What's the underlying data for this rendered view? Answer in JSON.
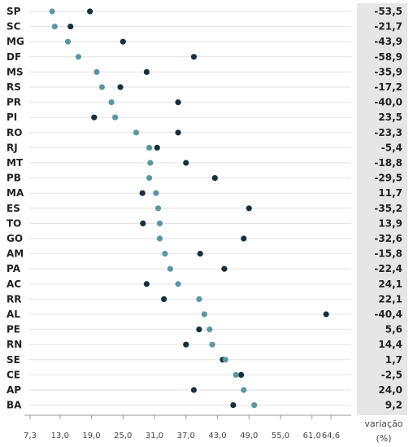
{
  "chart_data": {
    "type": "scatter",
    "title": "",
    "x_axis": {
      "range": [
        7.3,
        64.6
      ],
      "ticks": [
        7.3,
        13.0,
        19.0,
        25.0,
        31.0,
        37.0,
        43.0,
        49.0,
        55.0,
        61.0,
        64.6
      ],
      "tick_labels": [
        "7,3",
        "13,0",
        "19,0",
        "25,0",
        "31,0",
        "37,0",
        "43,0",
        "49,0",
        "55,0",
        "61,0",
        "64,6"
      ]
    },
    "variation_column": {
      "label_line1": "variação",
      "label_line2": "(%)"
    },
    "series_colors": {
      "light": "#5b97a1",
      "dark": "#17303d"
    },
    "states": [
      {
        "name": "SP",
        "light": 11.5,
        "dark": 18.7,
        "variation": "-53,5"
      },
      {
        "name": "SC",
        "light": 12.0,
        "dark": 15.0,
        "variation": "-21,7"
      },
      {
        "name": "MG",
        "light": 14.5,
        "dark": 25.0,
        "variation": "-43,9"
      },
      {
        "name": "DF",
        "light": 16.5,
        "dark": 38.5,
        "variation": "-58,9"
      },
      {
        "name": "MS",
        "light": 20.0,
        "dark": 29.5,
        "variation": "-35,9"
      },
      {
        "name": "RS",
        "light": 21.0,
        "dark": 24.5,
        "variation": "-17,2"
      },
      {
        "name": "PR",
        "light": 22.8,
        "dark": 35.5,
        "variation": "-40,0"
      },
      {
        "name": "PI",
        "light": 23.5,
        "dark": 19.5,
        "variation": "23,5"
      },
      {
        "name": "RO",
        "light": 27.5,
        "dark": 35.5,
        "variation": "-23,3"
      },
      {
        "name": "RJ",
        "light": 30.0,
        "dark": 31.5,
        "variation": "-5,4"
      },
      {
        "name": "MT",
        "light": 30.2,
        "dark": 37.0,
        "variation": "-18,8"
      },
      {
        "name": "PB",
        "light": 30.0,
        "dark": 42.5,
        "variation": "-29,5"
      },
      {
        "name": "MA",
        "light": 31.3,
        "dark": 28.7,
        "variation": "11,7"
      },
      {
        "name": "ES",
        "light": 31.7,
        "dark": 49.0,
        "variation": "-35,2"
      },
      {
        "name": "TO",
        "light": 32.0,
        "dark": 28.8,
        "variation": "13,9"
      },
      {
        "name": "GO",
        "light": 32.0,
        "dark": 48.0,
        "variation": "-32,6"
      },
      {
        "name": "AM",
        "light": 33.0,
        "dark": 39.7,
        "variation": "-15,8"
      },
      {
        "name": "PA",
        "light": 34.0,
        "dark": 44.3,
        "variation": "-22,4"
      },
      {
        "name": "AC",
        "light": 35.5,
        "dark": 29.5,
        "variation": "24,1"
      },
      {
        "name": "RR",
        "light": 39.5,
        "dark": 32.8,
        "variation": "22,1"
      },
      {
        "name": "AL",
        "light": 40.5,
        "dark": 63.7,
        "variation": "-40,4"
      },
      {
        "name": "PE",
        "light": 41.5,
        "dark": 39.5,
        "variation": "5,6"
      },
      {
        "name": "RN",
        "light": 42.0,
        "dark": 37.0,
        "variation": "14,4"
      },
      {
        "name": "SE",
        "light": 44.5,
        "dark": 44.0,
        "variation": "1,7"
      },
      {
        "name": "CE",
        "light": 46.5,
        "dark": 47.5,
        "variation": "-2,5"
      },
      {
        "name": "AP",
        "light": 48.0,
        "dark": 38.5,
        "variation": "24,0"
      },
      {
        "name": "BA",
        "light": 50.0,
        "dark": 46.0,
        "variation": "9,2"
      }
    ]
  }
}
